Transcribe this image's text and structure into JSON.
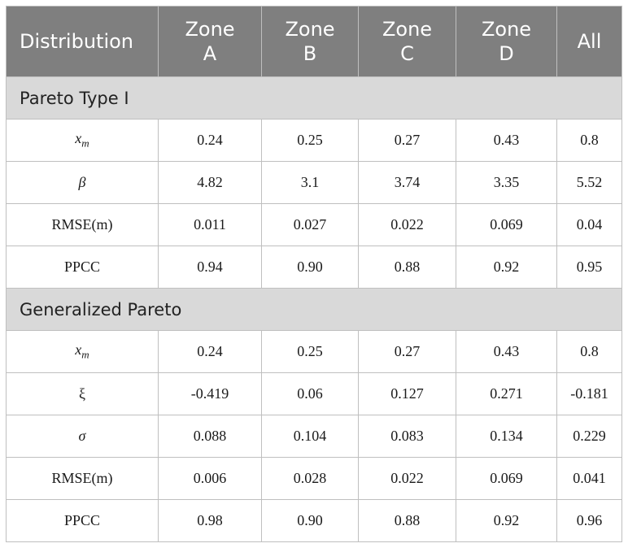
{
  "headers": [
    [
      "Distribution"
    ],
    [
      "Zone",
      "A"
    ],
    [
      "Zone",
      "B"
    ],
    [
      "Zone",
      "C"
    ],
    [
      "Zone",
      "D"
    ],
    [
      "All"
    ]
  ],
  "sections": [
    {
      "title": "Pareto Type I",
      "rows": [
        {
          "label": "x",
          "sub": "m",
          "values": [
            "0.24",
            "0.25",
            "0.27",
            "0.43",
            "0.8"
          ]
        },
        {
          "label": "β",
          "values": [
            "4.82",
            "3.1",
            "3.74",
            "3.35",
            "5.52"
          ]
        },
        {
          "label": "RMSE(m)",
          "values": [
            "0.011",
            "0.027",
            "0.022",
            "0.069",
            "0.04"
          ]
        },
        {
          "label": "PPCC",
          "values": [
            "0.94",
            "0.90",
            "0.88",
            "0.92",
            "0.95"
          ]
        }
      ]
    },
    {
      "title": "Generalized Pareto",
      "rows": [
        {
          "label": "x",
          "sub": "m",
          "values": [
            "0.24",
            "0.25",
            "0.27",
            "0.43",
            "0.8"
          ]
        },
        {
          "label": "ξ",
          "values": [
            "-0.419",
            "0.06",
            "0.127",
            "0.271",
            "-0.181"
          ]
        },
        {
          "label": "σ",
          "values": [
            "0.088",
            "0.104",
            "0.083",
            "0.134",
            "0.229"
          ]
        },
        {
          "label": "RMSE(m)",
          "values": [
            "0.006",
            "0.028",
            "0.022",
            "0.069",
            "0.041"
          ]
        },
        {
          "label": "PPCC",
          "values": [
            "0.98",
            "0.90",
            "0.88",
            "0.92",
            "0.96"
          ]
        }
      ]
    }
  ]
}
